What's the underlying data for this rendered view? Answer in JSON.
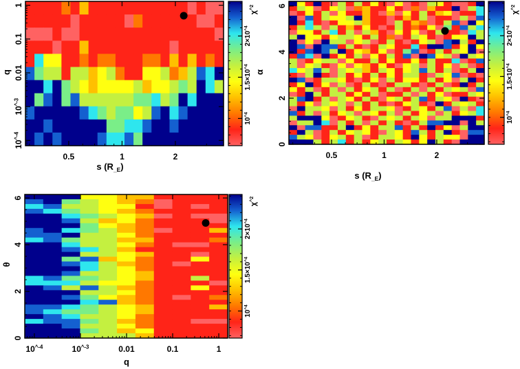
{
  "chart_data": [
    {
      "type": "heatmap",
      "id": "panel_s_q",
      "xlabel": "s (R_E)",
      "ylabel": "q",
      "colorbar_label": "χ^2",
      "xscale": "log",
      "yscale": "log",
      "xlim": [
        0.285,
        3.74
      ],
      "ylim": [
        7e-05,
        1.3
      ],
      "xticks": [
        {
          "v": 0.5,
          "label": "0.5"
        },
        {
          "v": 1,
          "label": "1"
        },
        {
          "v": 2,
          "label": "2"
        }
      ],
      "yticks": [
        {
          "v": 1,
          "label": "1"
        },
        {
          "v": 0.1,
          "label": "0.1"
        },
        {
          "v": 0.01,
          "label": "0.01"
        },
        {
          "v": 0.001,
          "label": "10^-3"
        },
        {
          "v": 0.0001,
          "label": "10^-4"
        }
      ],
      "best_fit": {
        "x": 2.23,
        "y": 0.49
      },
      "grid_levels_top_to_bottom": [
        "1111213111111111110100",
        "1111101111102111111001",
        "0001001111111111111110",
        "1110113111111111011111",
        "1744112122111221313121",
        "8655155345211445235879",
        "9979654344445344565975",
        "9689685555556675697999",
        "8999998765664589789999",
        "9989999996677899899999",
        "9898999987786999999999"
      ]
    },
    {
      "type": "heatmap",
      "id": "panel_s_alpha",
      "xlabel": "s (R_E)",
      "ylabel": "α",
      "colorbar_label": "χ^2",
      "xscale": "log",
      "yscale": "linear",
      "xlim": [
        0.285,
        3.74
      ],
      "ylim": [
        0,
        6.2
      ],
      "xticks": [
        {
          "v": 0.5,
          "label": "0.5"
        },
        {
          "v": 1,
          "label": "1"
        },
        {
          "v": 2,
          "label": "2"
        }
      ],
      "yticks": [
        {
          "v": 0,
          "label": "0"
        },
        {
          "v": 2,
          "label": "2"
        },
        {
          "v": 4,
          "label": "4"
        },
        {
          "v": 6,
          "label": "6"
        }
      ],
      "best_fit": {
        "x": 2.23,
        "y": 4.92
      },
      "grid_levels_top_to_bottom": [
        "941910515141040105410019",
        "154014502311410203119057",
        "014150411310304151340117",
        "908154459311013150110508",
        "917101445311051320158094",
        "157505131410151214061857",
        "044157150531041401511075",
        "594414554151201541014495",
        "904095504501510145089519",
        "980988151015411719981494",
        "918985914314016801515490",
        "187091415041518098450954",
        "501455041151411415117018",
        "504510404314104505140501",
        "745850545315414585150159",
        "105910514151415510548010",
        "980155410140514415140591",
        "149140501510155101501915",
        "415015051451501505154508",
        "019515514150115051401154",
        "589150541510451581540910",
        "514054505151014510915451",
        "095540514155401541580507",
        "815051450541505145051457",
        "599940145105451540559991",
        "055970515051510158899095",
        "908811591415581519140599",
        "195015145410541851591088",
        "854014515015541941544099",
        "999515715145154149510999"
      ]
    },
    {
      "type": "heatmap",
      "id": "panel_q_theta",
      "xlabel": "q",
      "ylabel": "θ",
      "colorbar_label": "χ^2",
      "xscale": "log",
      "yscale": "linear",
      "xlim": [
        6.2e-05,
        1.56
      ],
      "ylim": [
        0,
        6.15
      ],
      "xticks": [
        {
          "v": 0.0001,
          "label": "10^-4"
        },
        {
          "v": 0.001,
          "label": "10^-3"
        },
        {
          "v": 0.01,
          "label": "0.01"
        },
        {
          "v": 0.1,
          "label": "0.1"
        },
        {
          "v": 1,
          "label": "1"
        }
      ],
      "yticks": [
        {
          "v": 0,
          "label": "0"
        },
        {
          "v": 2,
          "label": "2"
        },
        {
          "v": 4,
          "label": "4"
        },
        {
          "v": 6,
          "label": "6"
        }
      ],
      "best_fit": {
        "x": 0.52,
        "y": 4.93
      },
      "grid_levels_top_to_bottom": [
        "99944331111",
        "89654320111",
        "78554410101",
        "87654321111",
        "99765430100",
        "99853421110",
        "99964321111",
        "89765320113",
        "88955421111",
        "78655331112",
        "99755421001",
        "99875311111",
        "99955431101",
        "99683421141",
        "99875321011",
        "99975421111",
        "99855431111",
        "78665431151",
        "77754421110",
        "98585321141",
        "99955421111",
        "99864321012",
        "99978321111",
        "88765431113",
        "87665431111",
        "98755421111",
        "78865321100",
        "99855421111",
        "99965341111",
        "99955531111"
      ]
    }
  ],
  "colorbar": {
    "range": [
      6700,
      24200
    ],
    "ticks": [
      {
        "v": 10000,
        "label": "10^4"
      },
      {
        "v": 15000,
        "label": "1.5×10^4"
      },
      {
        "v": 20000,
        "label": "2×10^4"
      }
    ]
  },
  "color_levels": [
    "#ff6262",
    "#ff2418",
    "#ff7800",
    "#ffc000",
    "#ffff10",
    "#c4f040",
    "#7aee88",
    "#2ee6ee",
    "#1460d0",
    "#00008c"
  ]
}
